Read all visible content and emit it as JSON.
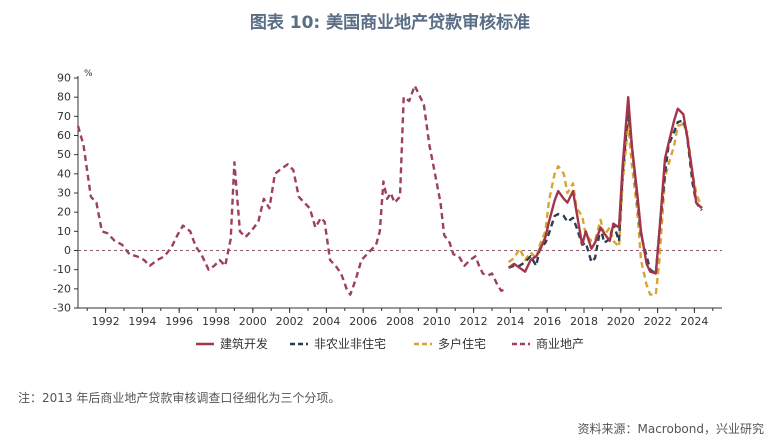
{
  "title": "图表 10: 美国商业地产贷款审核标准",
  "note": "注：2013 年后商业地产贷款审核调查口径细化为三个分项。",
  "source": "资料来源：Macrobond，兴业研究",
  "chart_data": {
    "type": "line",
    "y_unit": "%",
    "ylim": [
      -30,
      90
    ],
    "yticks": [
      90,
      80,
      70,
      60,
      50,
      40,
      30,
      20,
      10,
      0,
      -10,
      -20,
      -30
    ],
    "xlim": [
      1990.5,
      2025.5
    ],
    "xticks": [
      "1992",
      "1994",
      "1996",
      "1998",
      "2000",
      "2002",
      "2004",
      "2006",
      "2008",
      "2010",
      "2012",
      "2014",
      "2016",
      "2018",
      "2020",
      "2022",
      "2024"
    ],
    "zero_line": true,
    "legend_position": "bottom",
    "series": [
      {
        "name": "建筑开发",
        "color": "#a3354a",
        "style": "solid",
        "points": [
          [
            2013.9,
            -9
          ],
          [
            2014.2,
            -7
          ],
          [
            2014.5,
            -9
          ],
          [
            2014.8,
            -11
          ],
          [
            2015.1,
            -5
          ],
          [
            2015.4,
            -3
          ],
          [
            2015.6,
            0
          ],
          [
            2015.9,
            7
          ],
          [
            2016.1,
            15
          ],
          [
            2016.4,
            26
          ],
          [
            2016.6,
            31
          ],
          [
            2016.9,
            27
          ],
          [
            2017.1,
            25
          ],
          [
            2017.4,
            31
          ],
          [
            2017.6,
            20
          ],
          [
            2017.9,
            3
          ],
          [
            2018.1,
            10
          ],
          [
            2018.4,
            1
          ],
          [
            2018.6,
            4
          ],
          [
            2018.9,
            12
          ],
          [
            2019.1,
            9
          ],
          [
            2019.4,
            5
          ],
          [
            2019.6,
            14
          ],
          [
            2019.9,
            12
          ],
          [
            2020.1,
            44
          ],
          [
            2020.4,
            80
          ],
          [
            2020.6,
            55
          ],
          [
            2020.9,
            29
          ],
          [
            2021.1,
            10
          ],
          [
            2021.4,
            -7
          ],
          [
            2021.6,
            -11
          ],
          [
            2021.9,
            -12
          ],
          [
            2022.1,
            10
          ],
          [
            2022.4,
            48
          ],
          [
            2022.6,
            56
          ],
          [
            2022.9,
            68
          ],
          [
            2023.1,
            74
          ],
          [
            2023.4,
            71
          ],
          [
            2023.6,
            60
          ],
          [
            2023.9,
            40
          ],
          [
            2024.1,
            25
          ],
          [
            2024.4,
            22
          ]
        ]
      },
      {
        "name": "非农业非住宅",
        "color": "#2d3d52",
        "style": "dashed",
        "points": [
          [
            2013.9,
            -9
          ],
          [
            2014.2,
            -8
          ],
          [
            2014.5,
            -8
          ],
          [
            2014.8,
            -6
          ],
          [
            2015.1,
            -3
          ],
          [
            2015.4,
            -8
          ],
          [
            2015.6,
            1
          ],
          [
            2015.9,
            4
          ],
          [
            2016.1,
            9
          ],
          [
            2016.4,
            18
          ],
          [
            2016.6,
            19
          ],
          [
            2016.9,
            18
          ],
          [
            2017.1,
            15
          ],
          [
            2017.4,
            17
          ],
          [
            2017.6,
            12
          ],
          [
            2017.9,
            3
          ],
          [
            2018.1,
            4
          ],
          [
            2018.4,
            -6
          ],
          [
            2018.6,
            -4
          ],
          [
            2018.9,
            12
          ],
          [
            2019.1,
            4
          ],
          [
            2019.4,
            6
          ],
          [
            2019.6,
            14
          ],
          [
            2019.9,
            5
          ],
          [
            2020.1,
            40
          ],
          [
            2020.4,
            73
          ],
          [
            2020.6,
            55
          ],
          [
            2020.9,
            26
          ],
          [
            2021.1,
            8
          ],
          [
            2021.4,
            -3
          ],
          [
            2021.6,
            -10
          ],
          [
            2021.9,
            -12
          ],
          [
            2022.1,
            10
          ],
          [
            2022.4,
            40
          ],
          [
            2022.6,
            55
          ],
          [
            2022.9,
            62
          ],
          [
            2023.1,
            67
          ],
          [
            2023.4,
            68
          ],
          [
            2023.6,
            60
          ],
          [
            2023.9,
            35
          ],
          [
            2024.1,
            25
          ],
          [
            2024.4,
            21
          ]
        ]
      },
      {
        "name": "多户住宅",
        "color": "#d8a535",
        "style": "dashed",
        "points": [
          [
            2013.9,
            -6
          ],
          [
            2014.2,
            -4
          ],
          [
            2014.5,
            1
          ],
          [
            2014.8,
            -5
          ],
          [
            2015.1,
            -1
          ],
          [
            2015.4,
            -4
          ],
          [
            2015.6,
            3
          ],
          [
            2015.9,
            10
          ],
          [
            2016.1,
            26
          ],
          [
            2016.4,
            40
          ],
          [
            2016.6,
            44
          ],
          [
            2016.9,
            40
          ],
          [
            2017.1,
            30
          ],
          [
            2017.4,
            35
          ],
          [
            2017.6,
            22
          ],
          [
            2017.9,
            18
          ],
          [
            2018.1,
            8
          ],
          [
            2018.4,
            5
          ],
          [
            2018.6,
            5
          ],
          [
            2018.9,
            16
          ],
          [
            2019.1,
            8
          ],
          [
            2019.4,
            12
          ],
          [
            2019.6,
            5
          ],
          [
            2019.9,
            2
          ],
          [
            2020.1,
            35
          ],
          [
            2020.4,
            66
          ],
          [
            2020.6,
            45
          ],
          [
            2020.9,
            20
          ],
          [
            2021.1,
            -5
          ],
          [
            2021.4,
            -18
          ],
          [
            2021.6,
            -23
          ],
          [
            2021.9,
            -23
          ],
          [
            2022.1,
            -5
          ],
          [
            2022.4,
            38
          ],
          [
            2022.6,
            45
          ],
          [
            2022.9,
            55
          ],
          [
            2023.1,
            65
          ],
          [
            2023.4,
            66
          ],
          [
            2023.6,
            62
          ],
          [
            2023.9,
            40
          ],
          [
            2024.1,
            30
          ],
          [
            2024.4,
            22
          ]
        ]
      },
      {
        "name": "商业地产",
        "color": "#9e4058",
        "style": "dashed",
        "points": [
          [
            1990.5,
            65
          ],
          [
            1990.8,
            55
          ],
          [
            1991.2,
            28
          ],
          [
            1991.5,
            25
          ],
          [
            1991.8,
            10
          ],
          [
            1992.1,
            9
          ],
          [
            1992.5,
            5
          ],
          [
            1992.9,
            3
          ],
          [
            1993.3,
            -2
          ],
          [
            1993.7,
            -3
          ],
          [
            1994.1,
            -5
          ],
          [
            1994.4,
            -8
          ],
          [
            1994.8,
            -5
          ],
          [
            1995.2,
            -3
          ],
          [
            1995.6,
            2
          ],
          [
            1995.9,
            8
          ],
          [
            1996.2,
            13
          ],
          [
            1996.6,
            10
          ],
          [
            1996.9,
            2
          ],
          [
            1997.2,
            -2
          ],
          [
            1997.6,
            -10
          ],
          [
            1997.9,
            -8
          ],
          [
            1998.2,
            -5
          ],
          [
            1998.5,
            -8
          ],
          [
            1998.8,
            6
          ],
          [
            1999.0,
            46
          ],
          [
            1999.3,
            10
          ],
          [
            1999.6,
            7
          ],
          [
            1999.9,
            10
          ],
          [
            2000.3,
            15
          ],
          [
            2000.6,
            27
          ],
          [
            2000.9,
            22
          ],
          [
            2001.2,
            40
          ],
          [
            2001.6,
            43
          ],
          [
            2001.9,
            45
          ],
          [
            2002.2,
            42
          ],
          [
            2002.5,
            28
          ],
          [
            2002.8,
            25
          ],
          [
            2003.1,
            22
          ],
          [
            2003.4,
            12
          ],
          [
            2003.7,
            17
          ],
          [
            2003.9,
            15
          ],
          [
            2004.2,
            -5
          ],
          [
            2004.5,
            -8
          ],
          [
            2004.8,
            -12
          ],
          [
            2005.1,
            -20
          ],
          [
            2005.3,
            -23
          ],
          [
            2005.6,
            -15
          ],
          [
            2005.9,
            -5
          ],
          [
            2006.1,
            -3
          ],
          [
            2006.4,
            0
          ],
          [
            2006.7,
            3
          ],
          [
            2006.9,
            10
          ],
          [
            2007.1,
            36
          ],
          [
            2007.3,
            27
          ],
          [
            2007.5,
            30
          ],
          [
            2007.7,
            25
          ],
          [
            2008.0,
            28
          ],
          [
            2008.2,
            80
          ],
          [
            2008.5,
            78
          ],
          [
            2008.8,
            86
          ],
          [
            2009.0,
            82
          ],
          [
            2009.3,
            76
          ],
          [
            2009.6,
            55
          ],
          [
            2009.9,
            40
          ],
          [
            2010.2,
            25
          ],
          [
            2010.4,
            8
          ],
          [
            2010.7,
            4
          ],
          [
            2010.9,
            -2
          ],
          [
            2011.2,
            -3
          ],
          [
            2011.5,
            -8
          ],
          [
            2011.8,
            -5
          ],
          [
            2012.1,
            -3
          ],
          [
            2012.3,
            -8
          ],
          [
            2012.5,
            -12
          ],
          [
            2012.8,
            -13
          ],
          [
            2013.0,
            -12
          ],
          [
            2013.3,
            -18
          ],
          [
            2013.5,
            -21
          ],
          [
            2013.8,
            -20
          ]
        ]
      }
    ]
  }
}
